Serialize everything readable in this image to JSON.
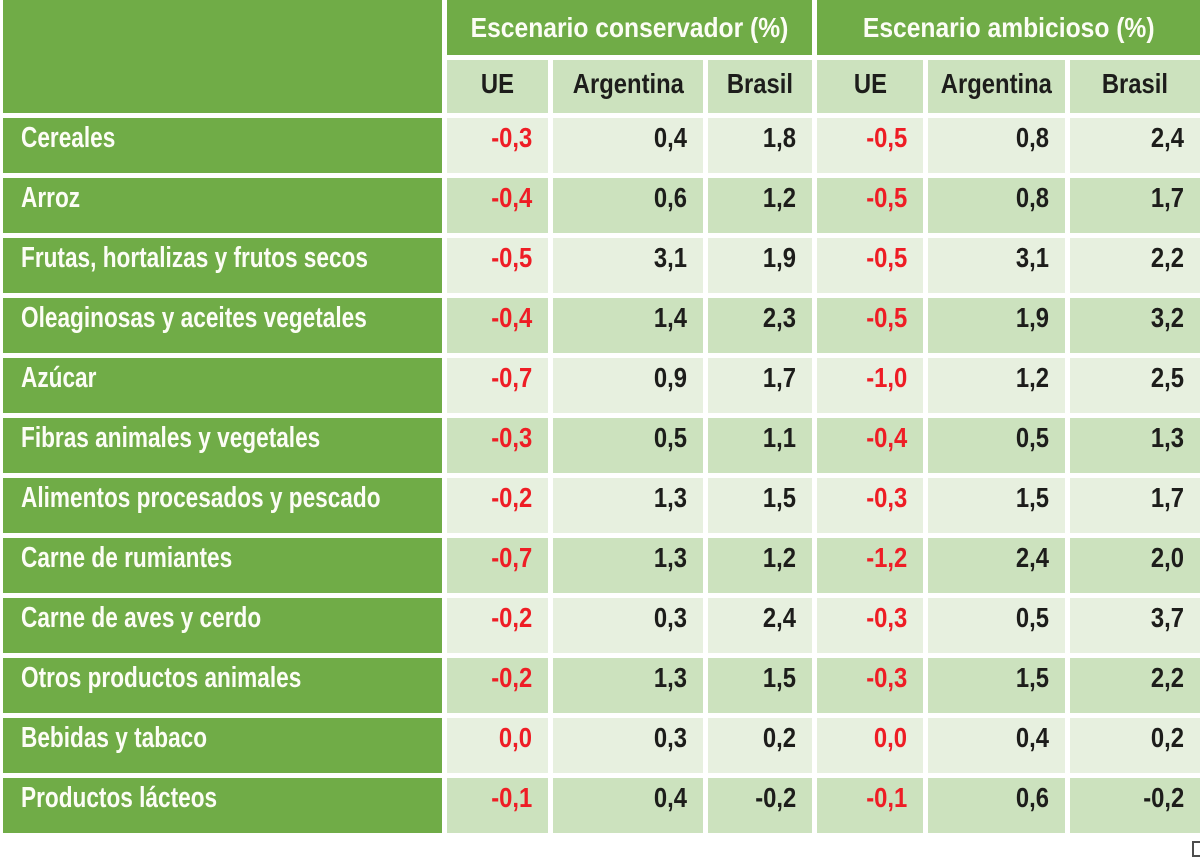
{
  "colors": {
    "header_green": "#70AC47",
    "row_light_green": "#E7F0DF",
    "row_medium_green": "#CCE2BE",
    "gutter_white": "#FFFFFF",
    "ue_value_red": "#EE1D25",
    "value_black": "#1D1D1B",
    "header_text_white": "#FCFDF5"
  },
  "table": {
    "scenario_headers": [
      "Escenario conservador (%)",
      "Escenario ambicioso (%)"
    ],
    "column_headers": [
      "UE",
      "Argentina",
      "Brasil",
      "UE",
      "Argentina",
      "Brasil"
    ],
    "red_value_columns": [
      0,
      3
    ],
    "rows": [
      {
        "label": "Cereales",
        "values": [
          "-0,3",
          "0,4",
          "1,8",
          "-0,5",
          "0,8",
          "2,4"
        ]
      },
      {
        "label": "Arroz",
        "values": [
          "-0,4",
          "0,6",
          "1,2",
          "-0,5",
          "0,8",
          "1,7"
        ]
      },
      {
        "label": "Frutas, hortalizas y frutos secos",
        "values": [
          "-0,5",
          "3,1",
          "1,9",
          "-0,5",
          "3,1",
          "2,2"
        ]
      },
      {
        "label": "Oleaginosas y aceites vegetales",
        "values": [
          "-0,4",
          "1,4",
          "2,3",
          "-0,5",
          "1,9",
          "3,2"
        ]
      },
      {
        "label": "Azúcar",
        "values": [
          "-0,7",
          "0,9",
          "1,7",
          "-1,0",
          "1,2",
          "2,5"
        ]
      },
      {
        "label": "Fibras animales y vegetales",
        "values": [
          "-0,3",
          "0,5",
          "1,1",
          "-0,4",
          "0,5",
          "1,3"
        ]
      },
      {
        "label": "Alimentos procesados y pescado",
        "values": [
          "-0,2",
          "1,3",
          "1,5",
          "-0,3",
          "1,5",
          "1,7"
        ]
      },
      {
        "label": "Carne de rumiantes",
        "values": [
          "-0,7",
          "1,3",
          "1,2",
          "-1,2",
          "2,4",
          "2,0"
        ]
      },
      {
        "label": "Carne de aves y cerdo",
        "values": [
          "-0,2",
          "0,3",
          "2,4",
          "-0,3",
          "0,5",
          "3,7"
        ]
      },
      {
        "label": "Otros productos animales",
        "values": [
          "-0,2",
          "1,3",
          "1,5",
          "-0,3",
          "1,5",
          "2,2"
        ]
      },
      {
        "label": "Bebidas y tabaco",
        "values": [
          "0,0",
          "0,3",
          "0,2",
          "0,0",
          "0,4",
          "0,2"
        ]
      },
      {
        "label": "Productos lácteos",
        "values": [
          "-0,1",
          "0,4",
          "-0,2",
          "-0,1",
          "0,6",
          "-0,2"
        ]
      }
    ]
  },
  "chart_data": {
    "type": "table",
    "title": "",
    "column_groups": [
      {
        "label": "Escenario conservador (%)",
        "columns": [
          "UE",
          "Argentina",
          "Brasil"
        ]
      },
      {
        "label": "Escenario ambicioso (%)",
        "columns": [
          "UE",
          "Argentina",
          "Brasil"
        ]
      }
    ],
    "columns": [
      "UE",
      "Argentina",
      "Brasil",
      "UE",
      "Argentina",
      "Brasil"
    ],
    "row_labels": [
      "Cereales",
      "Arroz",
      "Frutas, hortalizas y frutos secos",
      "Oleaginosas y aceites vegetales",
      "Azúcar",
      "Fibras animales y vegetales",
      "Alimentos procesados y pescado",
      "Carne de rumiantes",
      "Carne de aves y cerdo",
      "Otros productos animales",
      "Bebidas y tabaco",
      "Productos lácteos"
    ],
    "values": [
      [
        -0.3,
        0.4,
        1.8,
        -0.5,
        0.8,
        2.4
      ],
      [
        -0.4,
        0.6,
        1.2,
        -0.5,
        0.8,
        1.7
      ],
      [
        -0.5,
        3.1,
        1.9,
        -0.5,
        3.1,
        2.2
      ],
      [
        -0.4,
        1.4,
        2.3,
        -0.5,
        1.9,
        3.2
      ],
      [
        -0.7,
        0.9,
        1.7,
        -1.0,
        1.2,
        2.5
      ],
      [
        -0.3,
        0.5,
        1.1,
        -0.4,
        0.5,
        1.3
      ],
      [
        -0.2,
        1.3,
        1.5,
        -0.3,
        1.5,
        1.7
      ],
      [
        -0.7,
        1.3,
        1.2,
        -1.2,
        2.4,
        2.0
      ],
      [
        -0.2,
        0.3,
        2.4,
        -0.3,
        0.5,
        3.7
      ],
      [
        -0.2,
        1.3,
        1.5,
        -0.3,
        1.5,
        2.2
      ],
      [
        0.0,
        0.3,
        0.2,
        0.0,
        0.4,
        0.2
      ],
      [
        -0.1,
        0.4,
        -0.2,
        -0.1,
        0.6,
        -0.2
      ]
    ],
    "layout_hints": {
      "decimal_separator": ",",
      "ue_columns_font_color": "red",
      "alternating_row_shading": true
    }
  }
}
